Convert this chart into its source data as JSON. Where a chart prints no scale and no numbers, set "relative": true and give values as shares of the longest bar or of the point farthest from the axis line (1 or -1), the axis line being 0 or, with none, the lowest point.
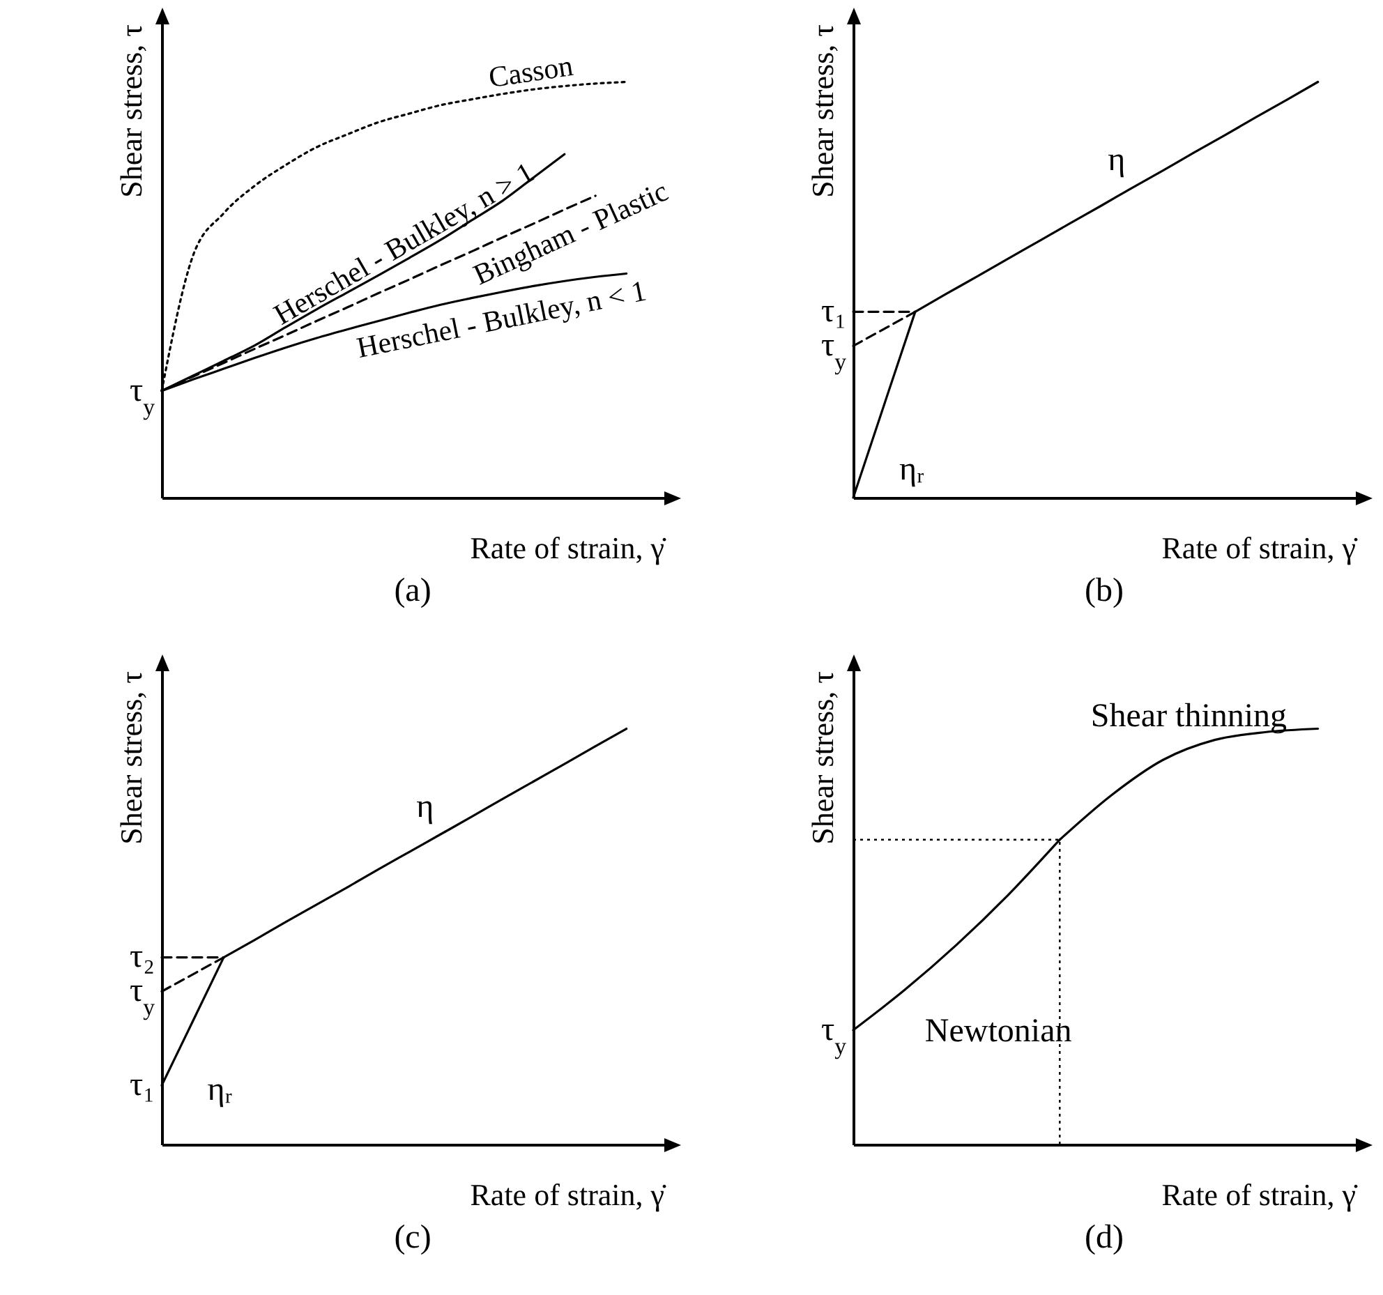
{
  "chart_data": [
    {
      "type": "line",
      "title": "(a)",
      "xlabel": "Rate of strain, γ̇",
      "ylabel": "Shear stress, τ",
      "relative": true,
      "categories": [
        null,
        null,
        null,
        null,
        null,
        null,
        null,
        null,
        null,
        null,
        null,
        null,
        null,
        null,
        null,
        null
      ],
      "series": [
        {
          "name": "Casson",
          "color": "#000000",
          "line_style": "dotted",
          "values": [
            0.257,
            0.58,
            0.684,
            0.75,
            0.8,
            0.843,
            0.874,
            0.903,
            0.924,
            0.944,
            0.958,
            0.971,
            0.982,
            0.99,
            0.996,
            1
          ]
        },
        {
          "name": "Herschel - Bulkley, n > 1",
          "color": "#000000",
          "values": [
            0.257,
            0.293,
            0.329,
            0.366,
            0.41,
            0.453,
            0.494,
            0.535,
            0.577,
            0.62,
            0.667,
            0.714,
            0.77,
            0.826,
            null,
            null
          ]
        },
        {
          "name": "Bingham - Plastic",
          "color": "#000000",
          "line_style": "dashed",
          "values": [
            0.257,
            0.291,
            0.324,
            0.358,
            0.391,
            0.425,
            0.458,
            0.492,
            0.525,
            0.559,
            0.592,
            0.626,
            0.659,
            0.693,
            0.726,
            null
          ]
        },
        {
          "name": "Herschel - Bulkley, n < 1",
          "color": "#000000",
          "values": [
            0.257,
            0.284,
            0.31,
            0.336,
            0.361,
            0.384,
            0.405,
            0.425,
            0.445,
            0.464,
            0.48,
            0.495,
            0.509,
            0.521,
            0.531,
            0.539
          ]
        }
      ],
      "annotations": [
        "τ$_{y}$"
      ]
    },
    {
      "type": "line",
      "title": "(b)",
      "xlabel": "Rate of strain, γ̇",
      "ylabel": "Shear stress, τ",
      "relative": true,
      "categories": [
        null,
        null,
        null,
        null,
        null,
        null,
        null,
        null,
        null,
        null,
        null,
        null,
        null,
        null,
        null,
        null
      ],
      "series": [
        {
          "name": "ηᵣ",
          "color": "#000000",
          "values": [
            0,
            0.224,
            0.447,
            null,
            null,
            null,
            null,
            null,
            null,
            null,
            null,
            null,
            null,
            null,
            null,
            null
          ]
        },
        {
          "name": "η",
          "color": "#000000",
          "values": [
            null,
            null,
            0.447,
            0.49,
            0.532,
            0.575,
            0.617,
            0.66,
            0.702,
            0.745,
            0.787,
            0.83,
            0.872,
            0.915,
            0.957,
            1
          ]
        },
        {
          "color": "#000000",
          "line_style": "dashed",
          "values": [
            0.447,
            0.447,
            0.447,
            null,
            null,
            null,
            null,
            null,
            null,
            null,
            null,
            null,
            null,
            null,
            null,
            null
          ]
        },
        {
          "color": "#000000",
          "line_style": "dashed",
          "values": [
            0.365,
            0.406,
            0.447,
            null,
            null,
            null,
            null,
            null,
            null,
            null,
            null,
            null,
            null,
            null,
            null,
            null
          ]
        }
      ],
      "annotations": [
        "τ₁",
        "τ$_{y}$"
      ]
    },
    {
      "type": "line",
      "title": "(c)",
      "xlabel": "Rate of strain, γ̇",
      "ylabel": "Shear stress, τ",
      "relative": true,
      "categories": [
        null,
        null,
        null,
        null,
        null,
        null,
        null,
        null,
        null,
        null,
        null,
        null,
        null,
        null,
        null,
        null
      ],
      "series": [
        {
          "name": "ηᵣ",
          "color": "#000000",
          "values": [
            0.142,
            0.296,
            0.45,
            null,
            null,
            null,
            null,
            null,
            null,
            null,
            null,
            null,
            null,
            null,
            null,
            null
          ]
        },
        {
          "name": "η",
          "color": "#000000",
          "values": [
            null,
            null,
            0.45,
            0.492,
            0.535,
            0.577,
            0.619,
            0.662,
            0.704,
            0.746,
            0.788,
            0.831,
            0.873,
            0.915,
            0.958,
            1
          ]
        },
        {
          "color": "#000000",
          "line_style": "dashed",
          "values": [
            0.45,
            0.45,
            0.45,
            null,
            null,
            null,
            null,
            null,
            null,
            null,
            null,
            null,
            null,
            null,
            null,
            null
          ]
        },
        {
          "color": "#000000",
          "line_style": "dashed",
          "values": [
            0.368,
            0.409,
            0.45,
            null,
            null,
            null,
            null,
            null,
            null,
            null,
            null,
            null,
            null,
            null,
            null,
            null
          ]
        }
      ],
      "annotations": [
        "τ₂",
        "τ$_{y}$",
        "τ₁"
      ]
    },
    {
      "type": "line",
      "title": "(d)",
      "xlabel": "Rate of strain, γ̇",
      "ylabel": "Shear stress, τ",
      "relative": true,
      "categories": [
        null,
        null,
        null,
        null,
        null,
        null,
        null,
        null,
        null,
        null
      ],
      "series": [
        {
          "name": "Newtonian",
          "color": "#000000",
          "values": [
            0.275,
            0.372,
            0.48,
            0.6,
            0.733,
            null,
            null,
            null,
            null,
            null
          ]
        },
        {
          "name": "Shear thinning",
          "color": "#000000",
          "values": [
            null,
            null,
            null,
            null,
            0.733,
            0.84,
            0.925,
            0.973,
            0.992,
            1
          ]
        }
      ],
      "ref_lines": [
        {
          "axis": "y",
          "value": 0.733,
          "line_style": "dotted",
          "color": "#000000"
        }
      ],
      "annotations": [
        "τ$_{y}$"
      ]
    }
  ]
}
